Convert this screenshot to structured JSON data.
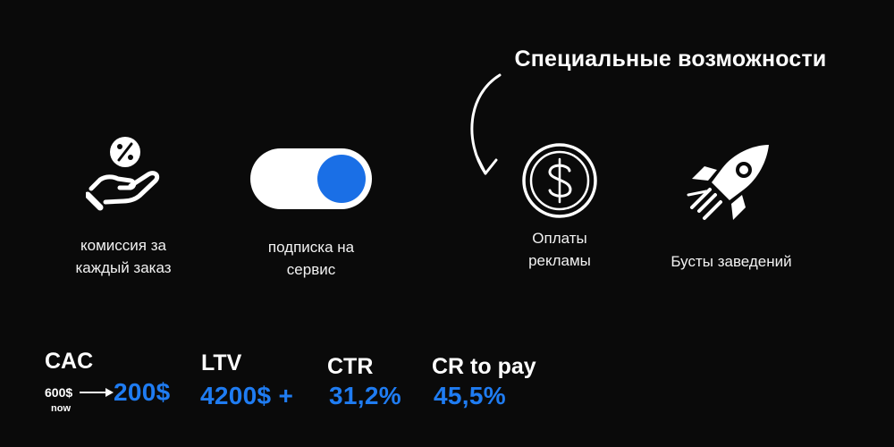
{
  "title": "Специальные возможности",
  "features": [
    {
      "icon": "percent-hand-icon",
      "line1": "комиссия за",
      "line2": "каждый заказ"
    },
    {
      "icon": "toggle-switch-icon",
      "line1": "подписка на",
      "line2": "сервис"
    },
    {
      "icon": "dollar-coin-icon",
      "line1": "Оплаты",
      "line2": "рекламы"
    },
    {
      "icon": "rocket-icon",
      "line1": "Бусты заведений",
      "line2": ""
    }
  ],
  "metrics": {
    "cac": {
      "label": "CAC",
      "old_value": "600$",
      "old_note": "now",
      "new_value": "200$"
    },
    "ltv": {
      "label": "LTV",
      "value": "4200$ +"
    },
    "ctr": {
      "label": "CTR",
      "value": "31,2%"
    },
    "cr": {
      "label": "CR to pay",
      "value": "45,5%"
    }
  },
  "colors": {
    "background": "#0a0a0a",
    "accent": "#1f7cf2",
    "toggle_knob": "#1a6fe6",
    "text": "#ffffff"
  }
}
